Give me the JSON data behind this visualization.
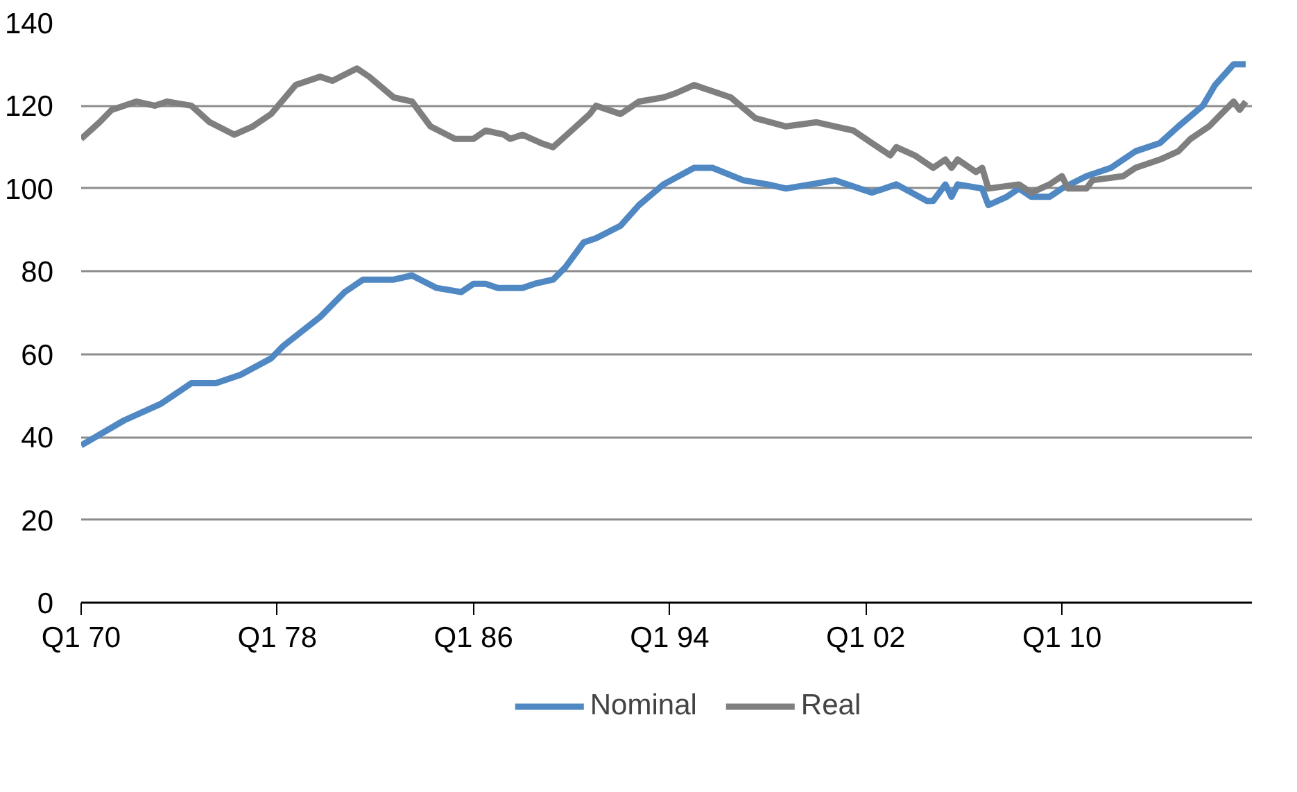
{
  "chart_data": {
    "type": "line",
    "xlim": [
      "1970-01",
      "2017-10"
    ],
    "xticks": [
      {
        "value": "1970-01",
        "label": "Q1 70"
      },
      {
        "value": "1978-01",
        "label": "Q1 78"
      },
      {
        "value": "1986-01",
        "label": "Q1 86"
      },
      {
        "value": "1994-01",
        "label": "Q1 94"
      },
      {
        "value": "2002-01",
        "label": "Q1 02"
      },
      {
        "value": "2010-01",
        "label": "Q1 10"
      }
    ],
    "ylim": [
      0,
      140
    ],
    "yticks": [
      0,
      20,
      40,
      60,
      80,
      100,
      120,
      140
    ],
    "grid": "y",
    "legend": "bottom",
    "marker": "none",
    "line_style": "solid",
    "series": [
      {
        "name": "Nominal",
        "color": "#4f88c2",
        "x": [
          "1970-01",
          "1971-10",
          "1973-04",
          "1974-07",
          "1975-07",
          "1976-07",
          "1977-10",
          "1978-04",
          "1979-10",
          "1980-10",
          "1981-07",
          "1982-10",
          "1983-07",
          "1984-07",
          "1985-07",
          "1986-01",
          "1986-07",
          "1987-01",
          "1988-01",
          "1988-07",
          "1989-04",
          "1989-10",
          "1990-07",
          "1991-01",
          "1992-01",
          "1992-10",
          "1993-10",
          "1995-01",
          "1995-10",
          "1997-01",
          "1998-01",
          "1998-10",
          "2000-10",
          "2002-04",
          "2003-04",
          "2004-07",
          "2004-10",
          "2005-04",
          "2005-07",
          "2005-10",
          "2006-10",
          "2007-01",
          "2007-10",
          "2008-04",
          "2008-10",
          "2009-07",
          "2010-01",
          "2011-01",
          "2012-01",
          "2013-01",
          "2014-01",
          "2014-10",
          "2015-10",
          "2016-04",
          "2017-01",
          "2017-04",
          "2017-07"
        ],
        "values": [
          38,
          44,
          48,
          53,
          53,
          55,
          59,
          62,
          69,
          75,
          78,
          78,
          79,
          76,
          75,
          77,
          77,
          76,
          76,
          77,
          78,
          81,
          87,
          88,
          91,
          96,
          101,
          105,
          105,
          102,
          101,
          100,
          102,
          99,
          101,
          97,
          97,
          101,
          98,
          101,
          100,
          96,
          98,
          100,
          98,
          98,
          100,
          103,
          105,
          109,
          111,
          115,
          120,
          125,
          130,
          130,
          130
        ]
      },
      {
        "name": "Real",
        "color": "#7f7f7f",
        "x": [
          "1970-01",
          "1970-10",
          "1971-04",
          "1972-04",
          "1973-01",
          "1973-07",
          "1974-07",
          "1975-04",
          "1976-04",
          "1977-01",
          "1977-10",
          "1978-10",
          "1979-10",
          "1980-04",
          "1981-04",
          "1981-10",
          "1982-10",
          "1983-07",
          "1984-04",
          "1985-04",
          "1986-01",
          "1986-07",
          "1987-04",
          "1987-07",
          "1988-01",
          "1988-10",
          "1989-04",
          "1990-01",
          "1990-10",
          "1991-01",
          "1992-01",
          "1992-10",
          "1993-10",
          "1994-04",
          "1995-01",
          "1996-07",
          "1997-07",
          "1998-10",
          "2000-01",
          "2000-10",
          "2001-07",
          "2002-04",
          "2003-01",
          "2003-04",
          "2004-01",
          "2004-10",
          "2005-04",
          "2005-07",
          "2005-10",
          "2006-07",
          "2006-10",
          "2007-01",
          "2008-04",
          "2008-10",
          "2009-07",
          "2010-01",
          "2010-04",
          "2011-01",
          "2011-04",
          "2012-07",
          "2013-01",
          "2014-01",
          "2014-10",
          "2015-04",
          "2016-01",
          "2016-07",
          "2017-01",
          "2017-04",
          "2017-07"
        ],
        "values": [
          112,
          116,
          119,
          121,
          120,
          121,
          120,
          116,
          113,
          115,
          118,
          125,
          127,
          126,
          129,
          127,
          122,
          121,
          115,
          112,
          112,
          114,
          113,
          112,
          113,
          111,
          110,
          114,
          118,
          120,
          118,
          121,
          122,
          123,
          125,
          122,
          117,
          115,
          116,
          115,
          114,
          111,
          108,
          110,
          108,
          105,
          107,
          105,
          107,
          104,
          105,
          100,
          101,
          99,
          101,
          103,
          100,
          100,
          102,
          103,
          105,
          107,
          109,
          112,
          115,
          118,
          121,
          119,
          121
        ]
      }
    ]
  }
}
